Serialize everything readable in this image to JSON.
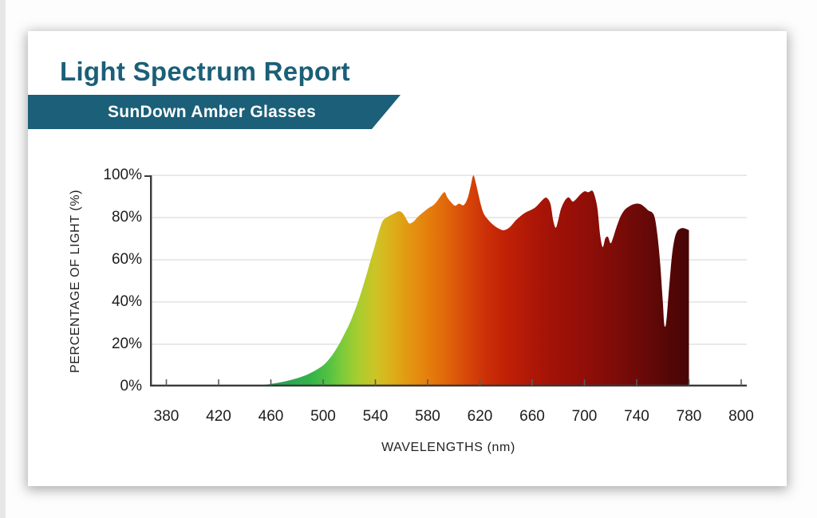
{
  "report": {
    "title": "Light Spectrum Report",
    "subtitle": "SunDown Amber Glasses"
  },
  "colors": {
    "accent_teal": "#1b5f78",
    "axis": "#3a3a3a",
    "tick": "#5a5a5a",
    "grid": "#e2e2e2",
    "label_text": "#1d1d1d"
  },
  "chart_data": {
    "type": "area",
    "title": "Light Spectrum Report",
    "subtitle": "SunDown Amber Glasses",
    "xlabel": "WAVELENGTHS (nm)",
    "ylabel": "PERCENTAGE OF LIGHT (%)",
    "x_tick_labels": [
      "380",
      "420",
      "460",
      "500",
      "540",
      "580",
      "620",
      "660",
      "700",
      "740",
      "780",
      "800"
    ],
    "y_tick_labels": [
      "0%",
      "20%",
      "40%",
      "60%",
      "80%",
      "100%"
    ],
    "xlim": [
      380,
      800
    ],
    "ylim": [
      0,
      100
    ],
    "grid": true,
    "legend": "none",
    "series_name": "percentage-of-light-transmitted",
    "points": [
      [
        440,
        0
      ],
      [
        446,
        0.3
      ],
      [
        452,
        0.6
      ],
      [
        458,
        1
      ],
      [
        464,
        1.6
      ],
      [
        470,
        2.3
      ],
      [
        476,
        3.2
      ],
      [
        482,
        4.3
      ],
      [
        488,
        5.7
      ],
      [
        494,
        7.6
      ],
      [
        500,
        10
      ],
      [
        504,
        12.5
      ],
      [
        508,
        15.8
      ],
      [
        512,
        19.8
      ],
      [
        516,
        24.5
      ],
      [
        520,
        29.5
      ],
      [
        524,
        35.5
      ],
      [
        528,
        42.5
      ],
      [
        532,
        50.5
      ],
      [
        536,
        59
      ],
      [
        540,
        67.5
      ],
      [
        542,
        72
      ],
      [
        544,
        76
      ],
      [
        546,
        78.8
      ],
      [
        549,
        80.2
      ],
      [
        552,
        81.2
      ],
      [
        555,
        82.2
      ],
      [
        558,
        83
      ],
      [
        561,
        82
      ],
      [
        564,
        79
      ],
      [
        566,
        77.2
      ],
      [
        569,
        78
      ],
      [
        572,
        80
      ],
      [
        575,
        81.7
      ],
      [
        578,
        83.2
      ],
      [
        581,
        84.6
      ],
      [
        584,
        85.7
      ],
      [
        587,
        87.6
      ],
      [
        590,
        90.2
      ],
      [
        593,
        92
      ],
      [
        595,
        89.6
      ],
      [
        598,
        87.2
      ],
      [
        601,
        85.6
      ],
      [
        604,
        86.6
      ],
      [
        607,
        85.8
      ],
      [
        609,
        87
      ],
      [
        611,
        90
      ],
      [
        613,
        95
      ],
      [
        615,
        100
      ],
      [
        617,
        96
      ],
      [
        619,
        90.5
      ],
      [
        621,
        85.5
      ],
      [
        623,
        81.8
      ],
      [
        626,
        79.2
      ],
      [
        629,
        77.2
      ],
      [
        632,
        75.7
      ],
      [
        635,
        74.6
      ],
      [
        638,
        74
      ],
      [
        641,
        74.6
      ],
      [
        644,
        76.2
      ],
      [
        647,
        78.4
      ],
      [
        650,
        80.1
      ],
      [
        653,
        81.6
      ],
      [
        656,
        82.7
      ],
      [
        659,
        83.6
      ],
      [
        662,
        84.6
      ],
      [
        665,
        86.4
      ],
      [
        668,
        88.4
      ],
      [
        671,
        89.4
      ],
      [
        674,
        86.5
      ],
      [
        676,
        79
      ],
      [
        678,
        75.2
      ],
      [
        680,
        79
      ],
      [
        682,
        84
      ],
      [
        685,
        88
      ],
      [
        688,
        89.6
      ],
      [
        691,
        87.6
      ],
      [
        694,
        89
      ],
      [
        697,
        91
      ],
      [
        700,
        92.4
      ],
      [
        703,
        92
      ],
      [
        706,
        92.7
      ],
      [
        708,
        90
      ],
      [
        710,
        84
      ],
      [
        712,
        72
      ],
      [
        714,
        66
      ],
      [
        716,
        70.2
      ],
      [
        718,
        70.8
      ],
      [
        720,
        67.8
      ],
      [
        722,
        70.5
      ],
      [
        724,
        74.5
      ],
      [
        726,
        78
      ],
      [
        728,
        81
      ],
      [
        731,
        83.8
      ],
      [
        734,
        85.2
      ],
      [
        737,
        86.2
      ],
      [
        740,
        86.6
      ],
      [
        743,
        86.3
      ],
      [
        746,
        85
      ],
      [
        749,
        83.3
      ],
      [
        752,
        82.3
      ],
      [
        754,
        79.5
      ],
      [
        756,
        71
      ],
      [
        758,
        58
      ],
      [
        760,
        40
      ],
      [
        761,
        30
      ],
      [
        762,
        28.5
      ],
      [
        763,
        33
      ],
      [
        765,
        48
      ],
      [
        767,
        62
      ],
      [
        769,
        70
      ],
      [
        771,
        73.5
      ],
      [
        773,
        74.6
      ],
      [
        775,
        75
      ],
      [
        777,
        74.8
      ],
      [
        780,
        74
      ]
    ],
    "gradient_stops": [
      {
        "wavelength": 440,
        "color": "#2E8C6B"
      },
      {
        "wavelength": 465,
        "color": "#2AA057"
      },
      {
        "wavelength": 490,
        "color": "#33B34A"
      },
      {
        "wavelength": 505,
        "color": "#55C243"
      },
      {
        "wavelength": 515,
        "color": "#7FCB39"
      },
      {
        "wavelength": 527,
        "color": "#A8CD2F"
      },
      {
        "wavelength": 540,
        "color": "#CDC425"
      },
      {
        "wavelength": 552,
        "color": "#DCB01B"
      },
      {
        "wavelength": 565,
        "color": "#E29812"
      },
      {
        "wavelength": 580,
        "color": "#E57F0D"
      },
      {
        "wavelength": 595,
        "color": "#E0650A"
      },
      {
        "wavelength": 610,
        "color": "#D74708"
      },
      {
        "wavelength": 625,
        "color": "#CB2F07"
      },
      {
        "wavelength": 640,
        "color": "#C02106"
      },
      {
        "wavelength": 660,
        "color": "#AE1707"
      },
      {
        "wavelength": 680,
        "color": "#9E1107"
      },
      {
        "wavelength": 700,
        "color": "#920E08"
      },
      {
        "wavelength": 720,
        "color": "#800C08"
      },
      {
        "wavelength": 740,
        "color": "#6E0A08"
      },
      {
        "wavelength": 760,
        "color": "#590707"
      },
      {
        "wavelength": 780,
        "color": "#470506"
      }
    ]
  }
}
